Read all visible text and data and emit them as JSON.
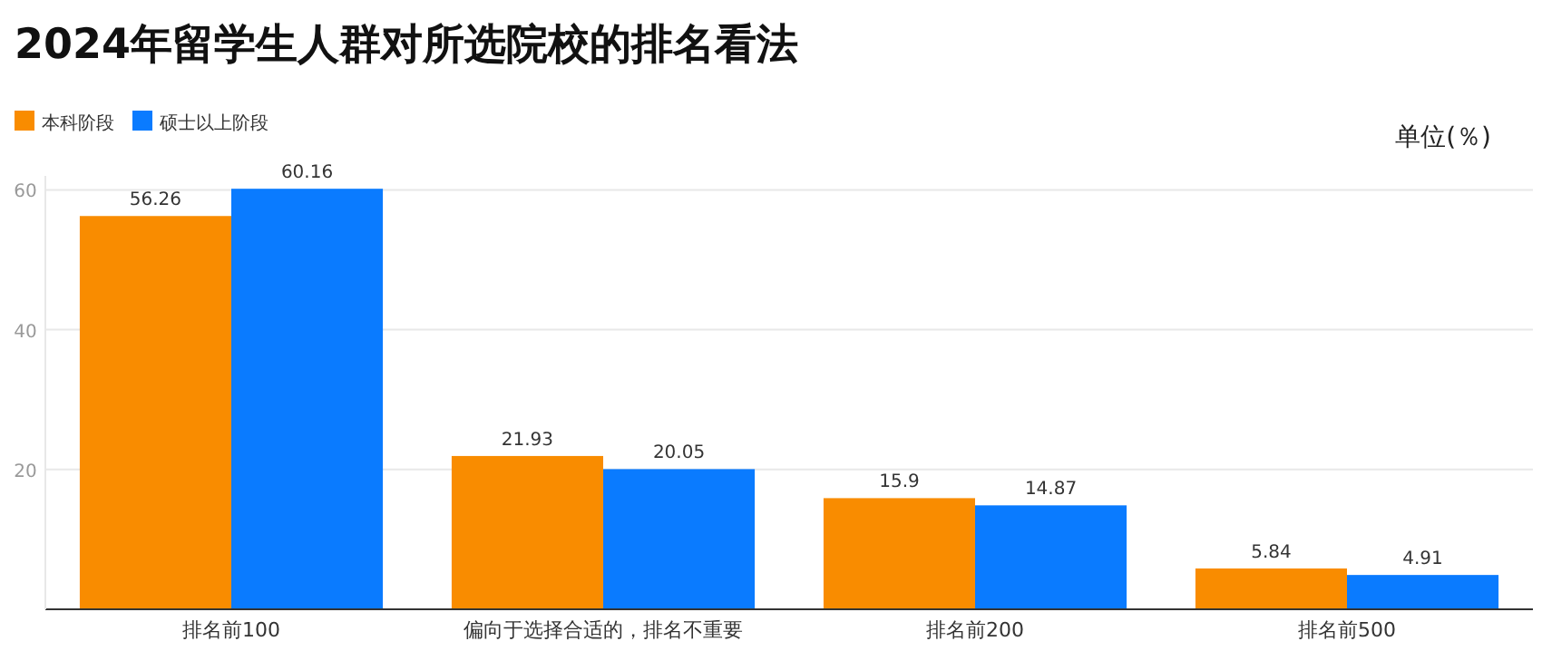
{
  "chart_data": {
    "type": "bar",
    "title": "2024年留学生人群对所选院校的排名看法",
    "categories": [
      "排名前100",
      "偏向于选择合适的，排名不重要",
      "排名前200",
      "排名前500"
    ],
    "series": [
      {
        "name": "本科阶段",
        "color": "#f98c00",
        "values": [
          56.26,
          21.93,
          15.9,
          5.84
        ]
      },
      {
        "name": "硕士以上阶段",
        "color": "#0a7bff",
        "values": [
          60.16,
          20.05,
          14.87,
          4.91
        ]
      }
    ],
    "ylim": [
      0,
      62
    ],
    "yticks": [
      {
        "value": 0,
        "label": null
      },
      20,
      40,
      60
    ],
    "grid": "y",
    "legend": "top left",
    "data_labels": true,
    "annotations": [
      "单位(％)"
    ]
  }
}
